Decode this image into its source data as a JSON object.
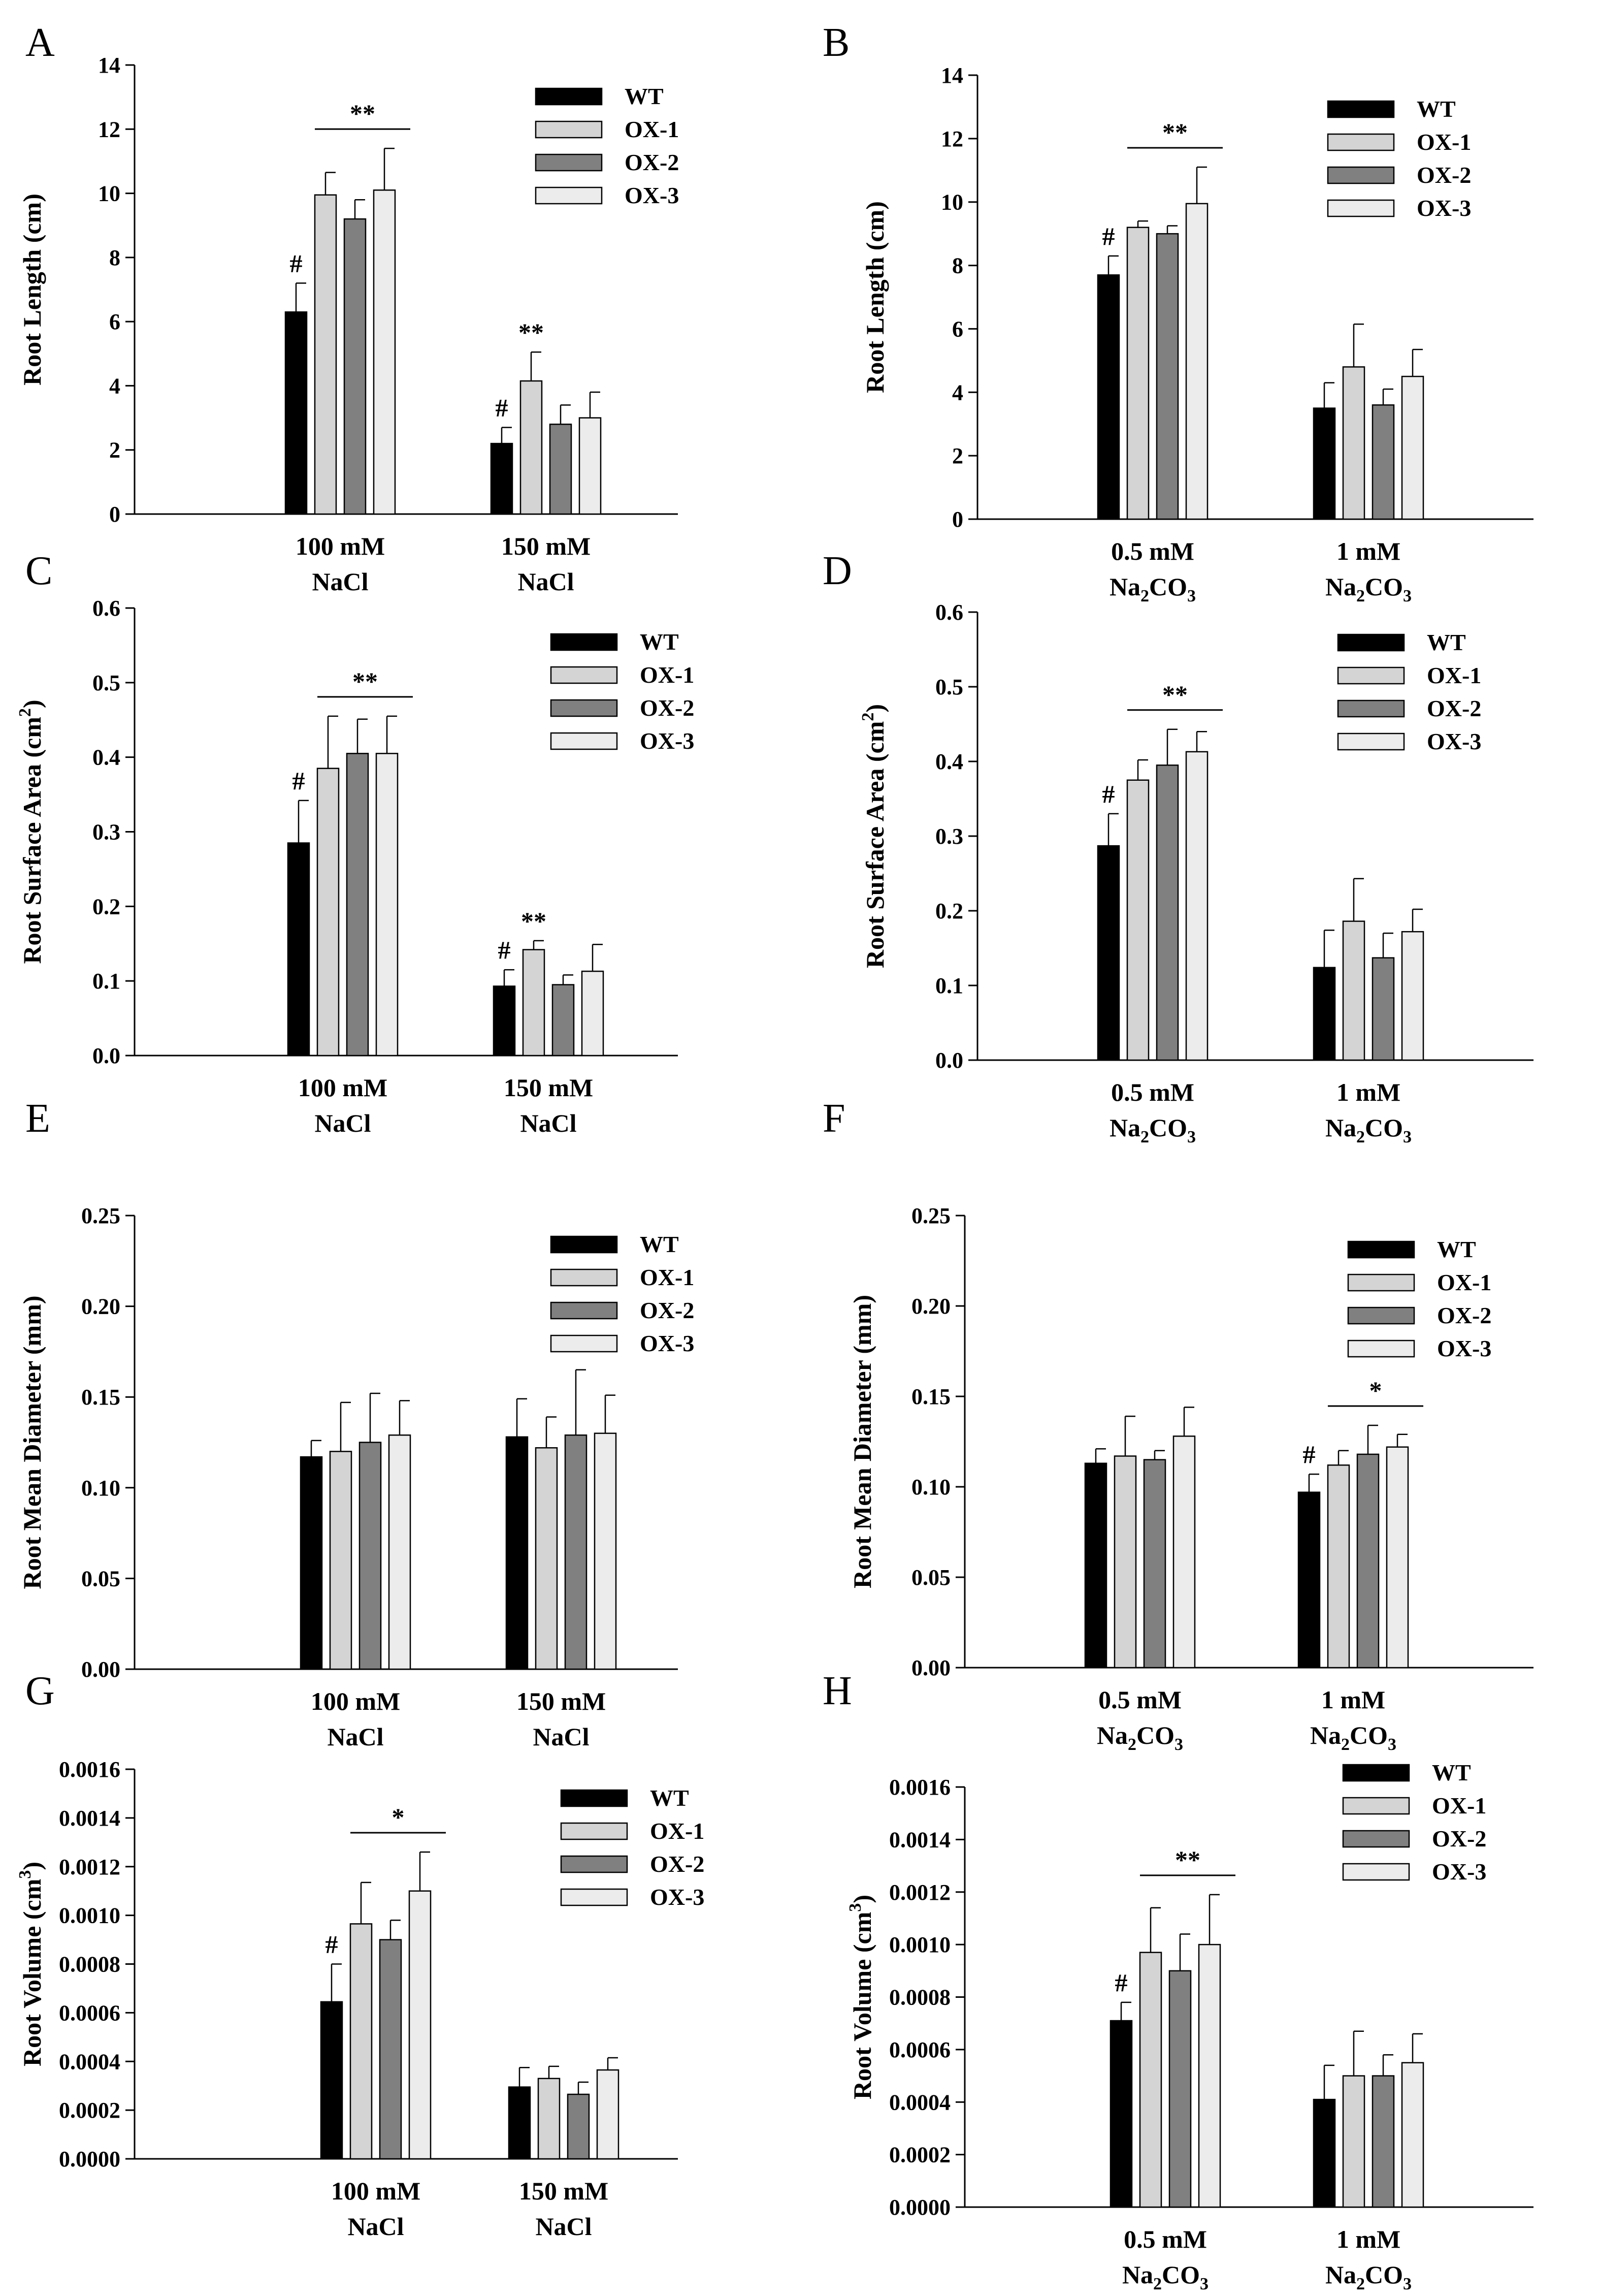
{
  "chart_data": [
    {
      "panel": "A",
      "type": "bar",
      "ylabel": "Root Length (cm)",
      "ylabel_sup": "",
      "ylim": [
        0,
        14
      ],
      "yticks": [
        "0",
        "2",
        "4",
        "6",
        "8",
        "10",
        "12",
        "14"
      ],
      "categories": [
        [
          "100 mM",
          "NaCl"
        ],
        [
          "150 mM",
          "NaCl"
        ]
      ],
      "series": [
        {
          "name": "WT",
          "values": [
            6.3,
            2.2
          ],
          "errors": [
            0.9,
            0.5
          ]
        },
        {
          "name": "OX-1",
          "values": [
            9.95,
            4.15
          ],
          "errors": [
            0.7,
            0.9
          ]
        },
        {
          "name": "OX-2",
          "values": [
            9.2,
            2.8
          ],
          "errors": [
            0.6,
            0.6
          ]
        },
        {
          "name": "OX-3",
          "values": [
            10.1,
            3.0
          ],
          "errors": [
            1.3,
            0.8
          ]
        }
      ],
      "annotations": [
        {
          "text": "#",
          "category": 0,
          "series": 0
        },
        {
          "text": "**",
          "category": 0,
          "bracket": true
        },
        {
          "text": "#",
          "category": 1,
          "series": 0
        },
        {
          "text": "**",
          "category": 1,
          "series": 1
        }
      ]
    },
    {
      "panel": "B",
      "type": "bar",
      "ylabel": "Root Length (cm)",
      "ylabel_sup": "",
      "ylim": [
        0,
        14
      ],
      "yticks": [
        "0",
        "2",
        "4",
        "6",
        "8",
        "10",
        "12",
        "14"
      ],
      "categories": [
        [
          "0.5 mM",
          "Na2CO3"
        ],
        [
          "1 mM",
          "Na2CO3"
        ]
      ],
      "series": [
        {
          "name": "WT",
          "values": [
            7.7,
            3.5
          ],
          "errors": [
            0.6,
            0.8
          ]
        },
        {
          "name": "OX-1",
          "values": [
            9.2,
            4.8
          ],
          "errors": [
            0.2,
            1.35
          ]
        },
        {
          "name": "OX-2",
          "values": [
            9.0,
            3.6
          ],
          "errors": [
            0.25,
            0.5
          ]
        },
        {
          "name": "OX-3",
          "values": [
            9.95,
            4.5
          ],
          "errors": [
            1.15,
            0.85
          ]
        }
      ],
      "annotations": [
        {
          "text": "#",
          "category": 0,
          "series": 0
        },
        {
          "text": "**",
          "category": 0,
          "bracket": true
        }
      ]
    },
    {
      "panel": "C",
      "type": "bar",
      "ylabel": "Root Surface Area (cm",
      "ylabel_sup": "2",
      "ylim": [
        0,
        0.6
      ],
      "yticks": [
        "0.0",
        "0.1",
        "0.2",
        "0.3",
        "0.4",
        "0.5",
        "0.6"
      ],
      "categories": [
        [
          "100 mM",
          "NaCl"
        ],
        [
          "150 mM",
          "NaCl"
        ]
      ],
      "series": [
        {
          "name": "WT",
          "values": [
            0.285,
            0.093
          ],
          "errors": [
            0.057,
            0.022
          ]
        },
        {
          "name": "OX-1",
          "values": [
            0.385,
            0.142
          ],
          "errors": [
            0.07,
            0.012
          ]
        },
        {
          "name": "OX-2",
          "values": [
            0.405,
            0.095
          ],
          "errors": [
            0.046,
            0.013
          ]
        },
        {
          "name": "OX-3",
          "values": [
            0.405,
            0.113
          ],
          "errors": [
            0.05,
            0.036
          ]
        }
      ],
      "annotations": [
        {
          "text": "#",
          "category": 0,
          "series": 0
        },
        {
          "text": "**",
          "category": 0,
          "bracket": true
        },
        {
          "text": "#",
          "category": 1,
          "series": 0
        },
        {
          "text": "**",
          "category": 1,
          "series": 1
        }
      ]
    },
    {
      "panel": "D",
      "type": "bar",
      "ylabel": "Root Surface Area (cm",
      "ylabel_sup": "2",
      "ylim": [
        0,
        0.6
      ],
      "yticks": [
        "0.0",
        "0.1",
        "0.2",
        "0.3",
        "0.4",
        "0.5",
        "0.6"
      ],
      "categories": [
        [
          "0.5 mM",
          "Na2CO3"
        ],
        [
          "1 mM",
          "Na2CO3"
        ]
      ],
      "series": [
        {
          "name": "WT",
          "values": [
            0.287,
            0.124
          ],
          "errors": [
            0.043,
            0.05
          ]
        },
        {
          "name": "OX-1",
          "values": [
            0.375,
            0.186
          ],
          "errors": [
            0.027,
            0.057
          ]
        },
        {
          "name": "OX-2",
          "values": [
            0.395,
            0.137
          ],
          "errors": [
            0.048,
            0.033
          ]
        },
        {
          "name": "OX-3",
          "values": [
            0.413,
            0.172
          ],
          "errors": [
            0.027,
            0.03
          ]
        }
      ],
      "annotations": [
        {
          "text": "#",
          "category": 0,
          "series": 0
        },
        {
          "text": "**",
          "category": 0,
          "bracket": true
        }
      ]
    },
    {
      "panel": "E",
      "type": "bar",
      "ylabel": "Root Mean Diameter (mm)",
      "ylabel_sup": "",
      "ylim": [
        0,
        0.25
      ],
      "yticks": [
        "0.00",
        "0.05",
        "0.10",
        "0.15",
        "0.20",
        "0.25"
      ],
      "categories": [
        [
          "100 mM",
          "NaCl"
        ],
        [
          "150 mM",
          "NaCl"
        ]
      ],
      "series": [
        {
          "name": "WT",
          "values": [
            0.117,
            0.128
          ],
          "errors": [
            0.009,
            0.021
          ]
        },
        {
          "name": "OX-1",
          "values": [
            0.12,
            0.122
          ],
          "errors": [
            0.027,
            0.017
          ]
        },
        {
          "name": "OX-2",
          "values": [
            0.125,
            0.129
          ],
          "errors": [
            0.027,
            0.036
          ]
        },
        {
          "name": "OX-3",
          "values": [
            0.129,
            0.13
          ],
          "errors": [
            0.019,
            0.021
          ]
        }
      ],
      "annotations": []
    },
    {
      "panel": "F",
      "type": "bar",
      "ylabel": "Root Mean Diameter (mm)",
      "ylabel_sup": "",
      "ylim": [
        0,
        0.25
      ],
      "yticks": [
        "0.00",
        "0.05",
        "0.10",
        "0.15",
        "0.20",
        "0.25"
      ],
      "categories": [
        [
          "0.5 mM",
          "Na2CO3"
        ],
        [
          "1 mM",
          "Na2CO3"
        ]
      ],
      "series": [
        {
          "name": "WT",
          "values": [
            0.113,
            0.097
          ],
          "errors": [
            0.008,
            0.01
          ]
        },
        {
          "name": "OX-1",
          "values": [
            0.117,
            0.112
          ],
          "errors": [
            0.022,
            0.008
          ]
        },
        {
          "name": "OX-2",
          "values": [
            0.115,
            0.118
          ],
          "errors": [
            0.005,
            0.016
          ]
        },
        {
          "name": "OX-3",
          "values": [
            0.128,
            0.122
          ],
          "errors": [
            0.016,
            0.007
          ]
        }
      ],
      "annotations": [
        {
          "text": "#",
          "category": 1,
          "series": 0
        },
        {
          "text": "*",
          "category": 1,
          "bracket": true
        }
      ]
    },
    {
      "panel": "G",
      "type": "bar",
      "ylabel": "Root Volume (cm",
      "ylabel_sup": "3",
      "ylim": [
        0,
        0.0016
      ],
      "yticks": [
        "0.0000",
        "0.0002",
        "0.0004",
        "0.0006",
        "0.0008",
        "0.0010",
        "0.0012",
        "0.0014",
        "0.0016"
      ],
      "categories": [
        [
          "100 mM",
          "NaCl"
        ],
        [
          "150 mM",
          "NaCl"
        ]
      ],
      "series": [
        {
          "name": "WT",
          "values": [
            0.000645,
            0.000295
          ],
          "errors": [
            0.000155,
            8e-05
          ]
        },
        {
          "name": "OX-1",
          "values": [
            0.000965,
            0.00033
          ],
          "errors": [
            0.00017,
            5e-05
          ]
        },
        {
          "name": "OX-2",
          "values": [
            0.0009,
            0.000265
          ],
          "errors": [
            8e-05,
            5e-05
          ]
        },
        {
          "name": "OX-3",
          "values": [
            0.0011,
            0.000365
          ],
          "errors": [
            0.00016,
            5e-05
          ]
        }
      ],
      "annotations": [
        {
          "text": "#",
          "category": 0,
          "series": 0
        },
        {
          "text": "*",
          "category": 0,
          "bracket": true
        }
      ]
    },
    {
      "panel": "H",
      "type": "bar",
      "ylabel": "Root Volume (cm",
      "ylabel_sup": "3",
      "ylim": [
        0,
        0.0016
      ],
      "yticks": [
        "0.0000",
        "0.0002",
        "0.0004",
        "0.0006",
        "0.0008",
        "0.0010",
        "0.0012",
        "0.0014",
        "0.0016"
      ],
      "categories": [
        [
          "0.5 mM",
          "Na2CO3"
        ],
        [
          "1 mM",
          "Na2CO3"
        ]
      ],
      "series": [
        {
          "name": "WT",
          "values": [
            0.00071,
            0.00041
          ],
          "errors": [
            7e-05,
            0.00013
          ]
        },
        {
          "name": "OX-1",
          "values": [
            0.00097,
            0.0005
          ],
          "errors": [
            0.00017,
            0.00017
          ]
        },
        {
          "name": "OX-2",
          "values": [
            0.0009,
            0.0005
          ],
          "errors": [
            0.00014,
            8e-05
          ]
        },
        {
          "name": "OX-3",
          "values": [
            0.001,
            0.00055
          ],
          "errors": [
            0.00019,
            0.00011
          ]
        }
      ],
      "annotations": [
        {
          "text": "#",
          "category": 0,
          "series": 0
        },
        {
          "text": "**",
          "category": 0,
          "bracket": true
        }
      ]
    }
  ],
  "colors": {
    "WT": "#000000",
    "OX-1": "#d4d4d4",
    "OX-2": "#808080",
    "OX-3": "#ececec",
    "axis": "#000000"
  }
}
